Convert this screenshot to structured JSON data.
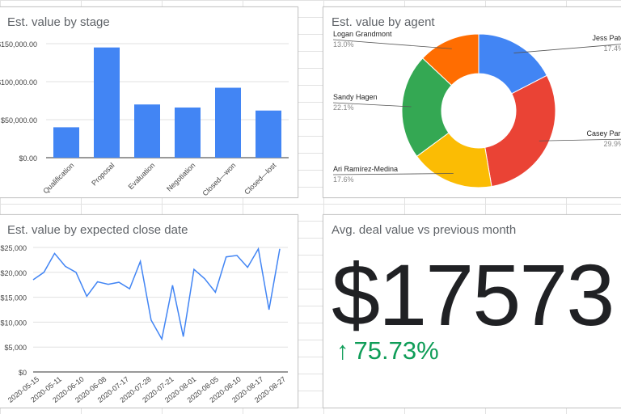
{
  "cards": {
    "stage": {
      "title": "Est. value by stage"
    },
    "agent": {
      "title": "Est. value by agent"
    },
    "close_date": {
      "title": "Est. value by expected close date"
    },
    "avg": {
      "title": "Avg. deal value vs previous month",
      "value": "$17573",
      "delta": "75.73%",
      "delta_icon": "arrow-up-icon",
      "delta_color": "#0f9d58"
    }
  },
  "chart_data": [
    {
      "type": "bar",
      "title": "Est. value by stage",
      "categories": [
        "Qualification",
        "Proposal",
        "Evaluation",
        "Negotiation",
        "Closed—won",
        "Closed—lost"
      ],
      "values": [
        40000,
        145000,
        70000,
        66000,
        92000,
        62000
      ],
      "ylim": [
        0,
        150000
      ],
      "yticks": [
        0,
        50000,
        100000,
        150000
      ],
      "ytick_labels": [
        "$0.00",
        "$50,000.00",
        "$100,000.00",
        "$150,000.00"
      ],
      "color": "#4285f4",
      "grid": true
    },
    {
      "type": "pie",
      "title": "Est. value by agent",
      "donut": true,
      "slices": [
        {
          "name": "Jess Pate",
          "percent": 17.4,
          "percent_label": "17.4%",
          "color": "#4285f4"
        },
        {
          "name": "Casey Park",
          "percent": 29.9,
          "percent_label": "29.9%",
          "color": "#ea4335"
        },
        {
          "name": "Ari Ramírez-Medina",
          "percent": 17.6,
          "percent_label": "17.6%",
          "color": "#fbbc04"
        },
        {
          "name": "Sandy Hagen",
          "percent": 22.1,
          "percent_label": "22.1%",
          "color": "#34a853"
        },
        {
          "name": "Logan Grandmont",
          "percent": 13.0,
          "percent_label": "13.0%",
          "color": "#ff6d01"
        }
      ]
    },
    {
      "type": "line",
      "title": "Est. value by expected close date",
      "x_tick_labels": [
        "2020-05-15",
        "2020-05-11",
        "2020-06-10",
        "2020-06-08",
        "2020-07-17",
        "2020-07-28",
        "2020-07-21",
        "2020-08-01",
        "2020-08-05",
        "2020-08-10",
        "2020-08-17",
        "2020-08-27"
      ],
      "values": [
        18500,
        20000,
        23800,
        21200,
        20000,
        15200,
        18100,
        17600,
        18000,
        16700,
        22200,
        10400,
        6600,
        17400,
        7100,
        20600,
        18700,
        16000,
        23100,
        23400,
        21000,
        24700,
        12500,
        24700
      ],
      "ylim": [
        0,
        25000
      ],
      "yticks": [
        0,
        5000,
        10000,
        15000,
        20000,
        25000
      ],
      "ytick_labels": [
        "$0",
        "$5,000",
        "$10,000",
        "$15,000",
        "$20,000",
        "$25,000"
      ],
      "color": "#4285f4",
      "grid": true
    }
  ]
}
